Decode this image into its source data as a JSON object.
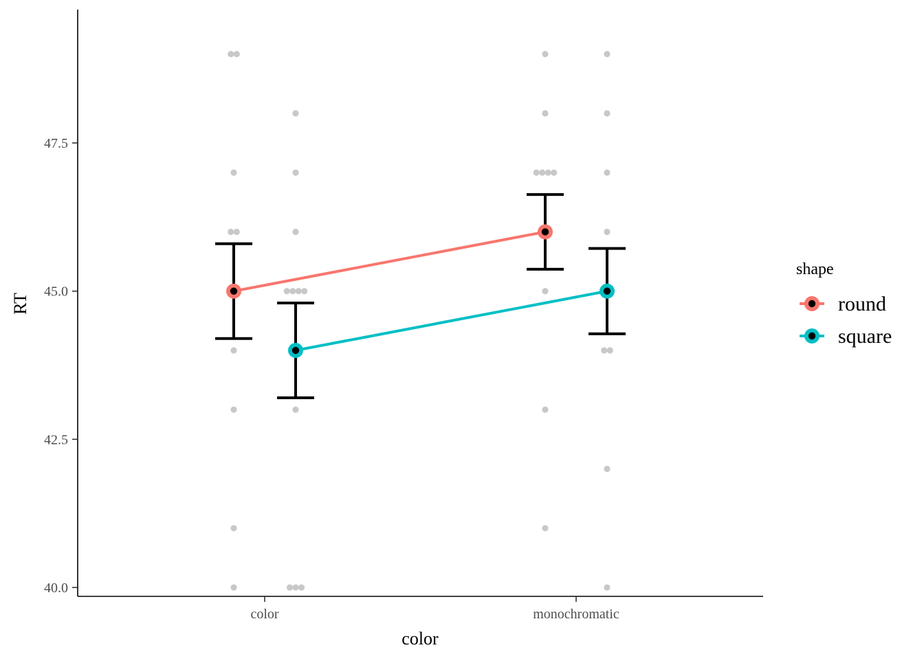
{
  "chart_data": {
    "type": "line",
    "xlabel": "color",
    "ylabel": "RT",
    "categories": [
      "color",
      "monochromatic"
    ],
    "ylim": [
      39.85,
      49.75
    ],
    "y_ticks": [
      "40.0",
      "42.5",
      "45.0",
      "47.5"
    ],
    "grid": false,
    "legend": {
      "title": "shape",
      "position": "right",
      "items": [
        {
          "label": "round",
          "color": "#F8766D"
        },
        {
          "label": "square",
          "color": "#00BFC4"
        }
      ]
    },
    "series": [
      {
        "name": "round",
        "color": "#F8766D",
        "means": [
          45.0,
          46.0
        ],
        "ci_low": [
          44.2,
          45.37
        ],
        "ci_high": [
          45.8,
          46.63
        ]
      },
      {
        "name": "square",
        "color": "#00BFC4",
        "means": [
          44.0,
          45.0
        ],
        "ci_low": [
          43.2,
          44.28
        ],
        "ci_high": [
          44.8,
          45.72
        ]
      }
    ],
    "raw_points": {
      "color": "#c8c8c8",
      "groups": [
        {
          "category": "color",
          "series": "round",
          "values": [
            49,
            49,
            47,
            46,
            46,
            45,
            44,
            43,
            41,
            40
          ]
        },
        {
          "category": "color",
          "series": "square",
          "values": [
            48,
            47,
            46,
            45,
            45,
            45,
            45,
            44,
            43,
            40,
            40,
            40
          ]
        },
        {
          "category": "monochromatic",
          "series": "round",
          "values": [
            49,
            48,
            47,
            47,
            47,
            47,
            46,
            45,
            43,
            41
          ]
        },
        {
          "category": "monochromatic",
          "series": "square",
          "values": [
            49,
            48,
            47,
            46,
            45,
            45,
            44,
            44,
            42,
            40
          ]
        }
      ]
    }
  }
}
